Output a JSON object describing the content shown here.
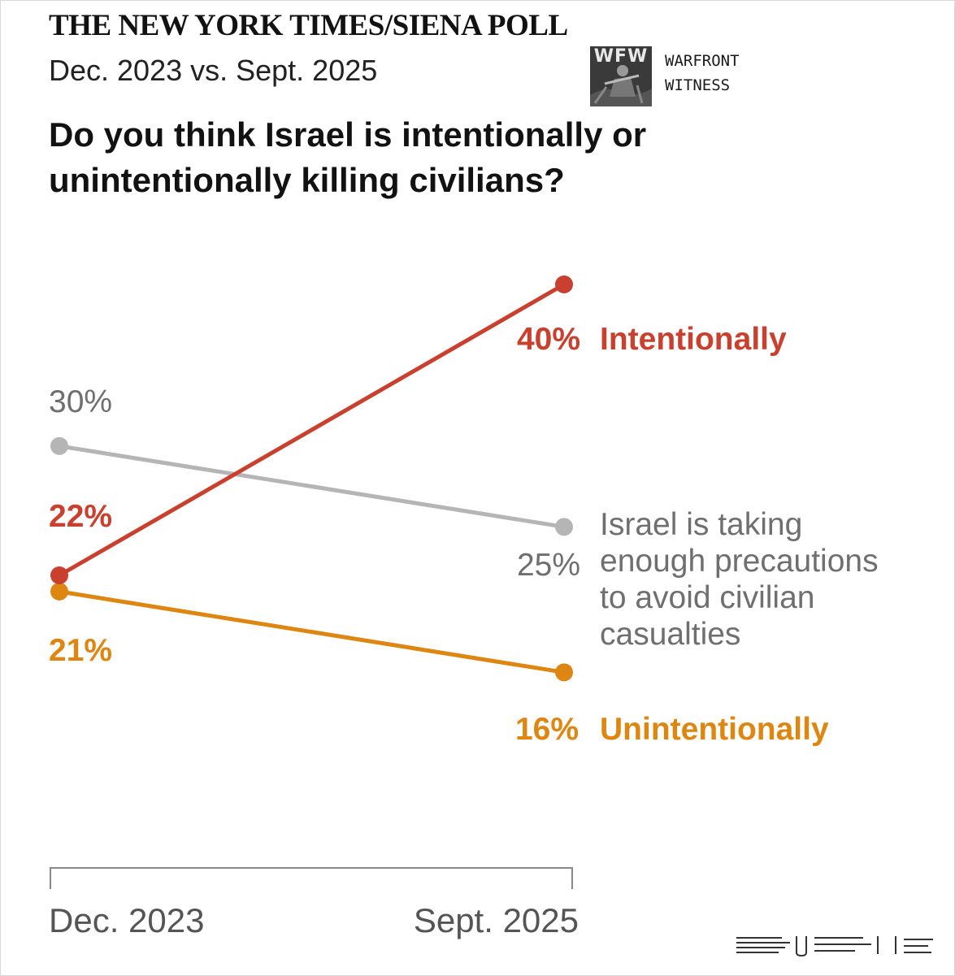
{
  "header": {
    "masthead": "THE NEW YORK TIMES/SIENA POLL",
    "dates": "Dec. 2023 vs. Sept. 2025",
    "question": "Do you think Israel is intentionally or unintentionally killing civilians?"
  },
  "watermark": {
    "logo_letters": "WFW",
    "line1": "WARFRONT",
    "line2": "WITNESS"
  },
  "colors": {
    "intentionally": "#c9402f",
    "precautions": "#b5b5b5",
    "unintentionally": "#dd8712",
    "axis": "#888888"
  },
  "chart_data": {
    "type": "line",
    "title": "Do you think Israel is intentionally or unintentionally killing civilians?",
    "categories": [
      "Dec. 2023",
      "Sept. 2025"
    ],
    "ylim": [
      10,
      45
    ],
    "grid": false,
    "series": [
      {
        "key": "intentionally",
        "name": "Intentionally",
        "values": [
          22,
          40
        ],
        "start_label": "22%",
        "end_label": "40%",
        "bold": true,
        "label_lines": [
          "Intentionally"
        ]
      },
      {
        "key": "precautions",
        "name": "Israel is taking enough precautions to avoid civilian casualties",
        "values": [
          30,
          25
        ],
        "start_label": "30%",
        "end_label": "25%",
        "bold": false,
        "label_lines": [
          "Israel is taking",
          "enough precautions",
          "to avoid civilian",
          "casualties"
        ]
      },
      {
        "key": "unintentionally",
        "name": "Unintentionally",
        "values": [
          21,
          16
        ],
        "start_label": "21%",
        "end_label": "16%",
        "bold": true,
        "label_lines": [
          "Unintentionally"
        ]
      }
    ]
  }
}
